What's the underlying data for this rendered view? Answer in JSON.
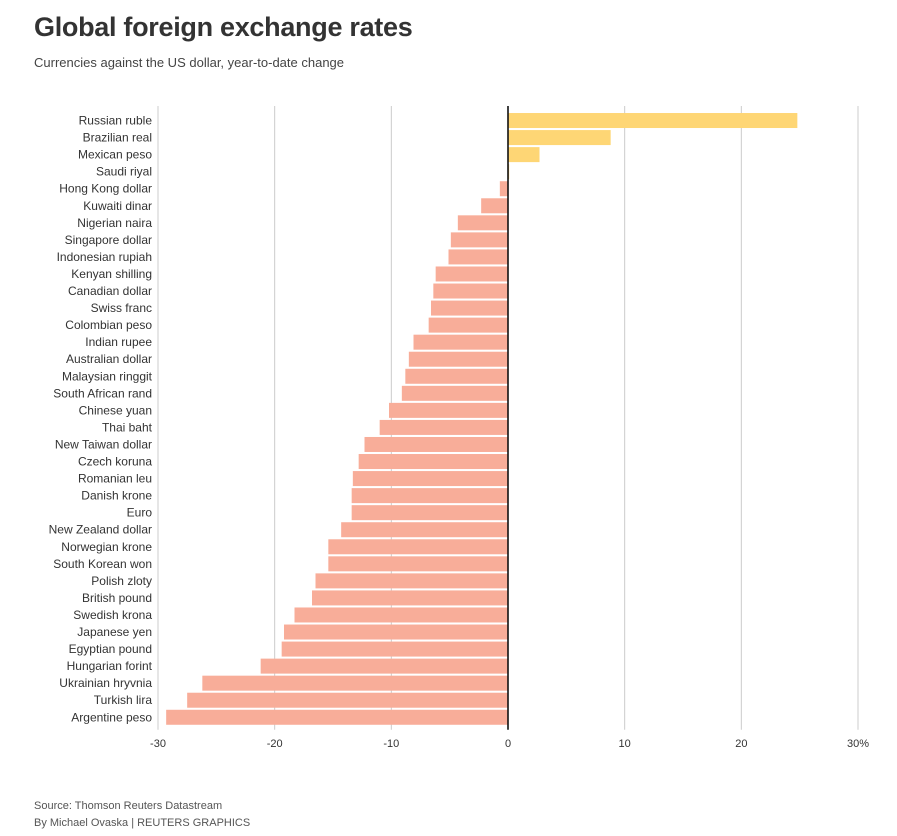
{
  "chart_data": {
    "type": "bar",
    "orientation": "horizontal",
    "title": "Global foreign exchange rates",
    "subtitle": "Currencies against the US dollar, year-to-date change",
    "xlabel": "",
    "ylabel": "",
    "xlim": [
      -30,
      30
    ],
    "ticks": [
      -30,
      -20,
      -10,
      0,
      10,
      20,
      30
    ],
    "tick_labels": [
      "-30",
      "-20",
      "-10",
      "0",
      "10",
      "20",
      "30%"
    ],
    "grid": true,
    "colors": {
      "positive": "#fed675",
      "negative": "#f8ad99",
      "grid": "#cccccc",
      "zero": "#111111"
    },
    "categories": [
      "Russian ruble",
      "Brazilian real",
      "Mexican peso",
      "Saudi riyal",
      "Hong Kong dollar",
      "Kuwaiti dinar",
      "Nigerian naira",
      "Singapore dollar",
      "Indonesian rupiah",
      "Kenyan shilling",
      "Canadian dollar",
      "Swiss franc",
      "Colombian peso",
      "Indian rupee",
      "Australian dollar",
      "Malaysian ringgit",
      "South African rand",
      "Chinese yuan",
      "Thai baht",
      "New Taiwan dollar",
      "Czech koruna",
      "Romanian leu",
      "Danish krone",
      "Euro",
      "New Zealand dollar",
      "Norwegian krone",
      "South Korean won",
      "Polish zloty",
      "British pound",
      "Swedish krona",
      "Japanese yen",
      "Egyptian pound",
      "Hungarian forint",
      "Ukrainian hryvnia",
      "Turkish lira",
      "Argentine peso"
    ],
    "values": [
      24.8,
      8.8,
      2.7,
      0.1,
      -0.7,
      -2.3,
      -4.3,
      -4.9,
      -5.1,
      -6.2,
      -6.4,
      -6.6,
      -6.8,
      -8.1,
      -8.5,
      -8.8,
      -9.1,
      -10.2,
      -11.0,
      -12.3,
      -12.8,
      -13.3,
      -13.4,
      -13.4,
      -14.3,
      -15.4,
      -15.4,
      -16.5,
      -16.8,
      -18.3,
      -19.2,
      -19.4,
      -21.2,
      -26.2,
      -27.5,
      -29.3
    ]
  },
  "footer": {
    "source": "Source: Thomson Reuters Datastream",
    "byline": "By Michael Ovaska | REUTERS GRAPHICS"
  }
}
